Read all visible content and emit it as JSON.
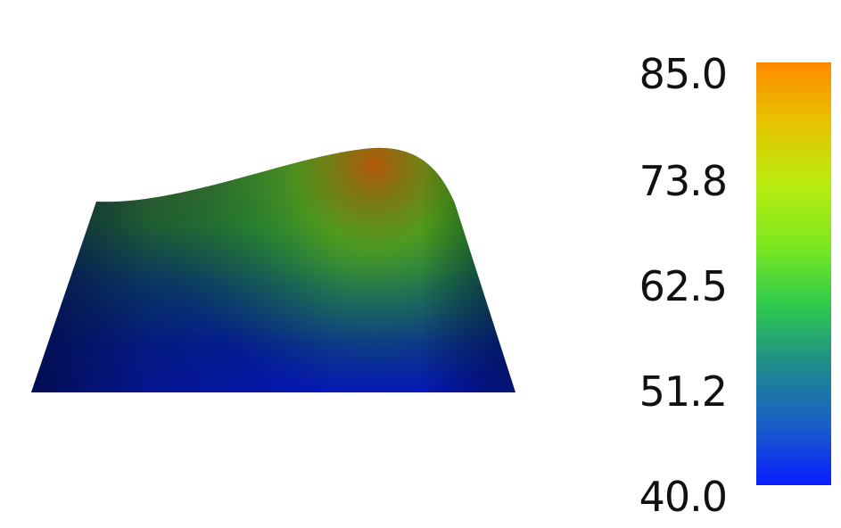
{
  "colorbar": {
    "ticks": [
      "85.0",
      "73.8",
      "62.5",
      "51.2",
      "40.0"
    ],
    "range": [
      40.0,
      85.0
    ],
    "colormap": [
      "#0a1dff",
      "#1a5fc8",
      "#1f8c8a",
      "#2fcb4c",
      "#7fe81f",
      "#b9ec10",
      "#e6c400",
      "#ff8a00"
    ]
  },
  "surface": {
    "min_color": "#03106e",
    "mid_color": "#3f9a1e",
    "max_color": "#b5640a"
  }
}
